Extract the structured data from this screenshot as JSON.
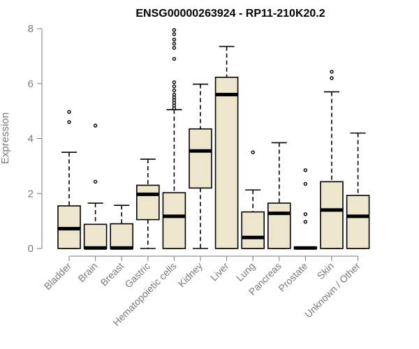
{
  "chart_data": {
    "type": "boxplot",
    "title": "ENSG00000263924 - RP11-210K20.2",
    "xlabel": "",
    "ylabel": "Expression",
    "ylim": [
      0,
      8
    ],
    "yticks": [
      0,
      2,
      4,
      6,
      8
    ],
    "box_fill": "#ede6cd",
    "median_color": "#000000",
    "axis_color": "#7a7a7a",
    "categories": [
      {
        "label": "Bladder",
        "lower_whisker": 0,
        "q1": 0,
        "median": 0.72,
        "q3": 1.55,
        "upper_whisker": 3.5,
        "outliers": [
          4.6,
          4.97
        ]
      },
      {
        "label": "Brain",
        "lower_whisker": 0,
        "q1": 0,
        "median": 0.02,
        "q3": 0.88,
        "upper_whisker": 1.65,
        "outliers": [
          2.43,
          4.47
        ]
      },
      {
        "label": "Breast",
        "lower_whisker": 0,
        "q1": 0,
        "median": 0.02,
        "q3": 0.9,
        "upper_whisker": 1.57,
        "outliers": []
      },
      {
        "label": "Gastric",
        "lower_whisker": 0,
        "q1": 1.05,
        "median": 1.97,
        "q3": 2.3,
        "upper_whisker": 3.25,
        "outliers": []
      },
      {
        "label": "Hematopoietic cells",
        "lower_whisker": 0,
        "q1": 0,
        "median": 1.17,
        "q3": 2.03,
        "upper_whisker": 5.05,
        "outliers": [
          5.1,
          5.2,
          5.3,
          5.4,
          5.5,
          5.6,
          5.75,
          5.9,
          6.05,
          6.9,
          7.3,
          7.45,
          7.6,
          7.8,
          7.95
        ]
      },
      {
        "label": "Kidney",
        "lower_whisker": 0,
        "q1": 2.2,
        "median": 3.55,
        "q3": 4.35,
        "upper_whisker": 5.98,
        "outliers": []
      },
      {
        "label": "Liver",
        "lower_whisker": 0,
        "q1": 0,
        "median": 5.6,
        "q3": 6.23,
        "upper_whisker": 7.35,
        "outliers": []
      },
      {
        "label": "Lung",
        "lower_whisker": 0,
        "q1": 0,
        "median": 0.4,
        "q3": 1.33,
        "upper_whisker": 2.13,
        "outliers": [
          3.5
        ]
      },
      {
        "label": "Pancreas",
        "lower_whisker": 0,
        "q1": 0,
        "median": 1.28,
        "q3": 1.65,
        "upper_whisker": 3.85,
        "outliers": []
      },
      {
        "label": "Prostate",
        "lower_whisker": 0,
        "q1": 0,
        "median": 0.02,
        "q3": 0.05,
        "upper_whisker": 0.05,
        "outliers": [
          0.97,
          1.25,
          2.35,
          2.85
        ]
      },
      {
        "label": "Skin",
        "lower_whisker": 0,
        "q1": 0,
        "median": 1.4,
        "q3": 2.43,
        "upper_whisker": 5.7,
        "outliers": [
          6.2,
          6.43
        ]
      },
      {
        "label": "Unknown / Other",
        "lower_whisker": 0,
        "q1": 0,
        "median": 1.17,
        "q3": 1.93,
        "upper_whisker": 4.2,
        "outliers": []
      }
    ]
  }
}
